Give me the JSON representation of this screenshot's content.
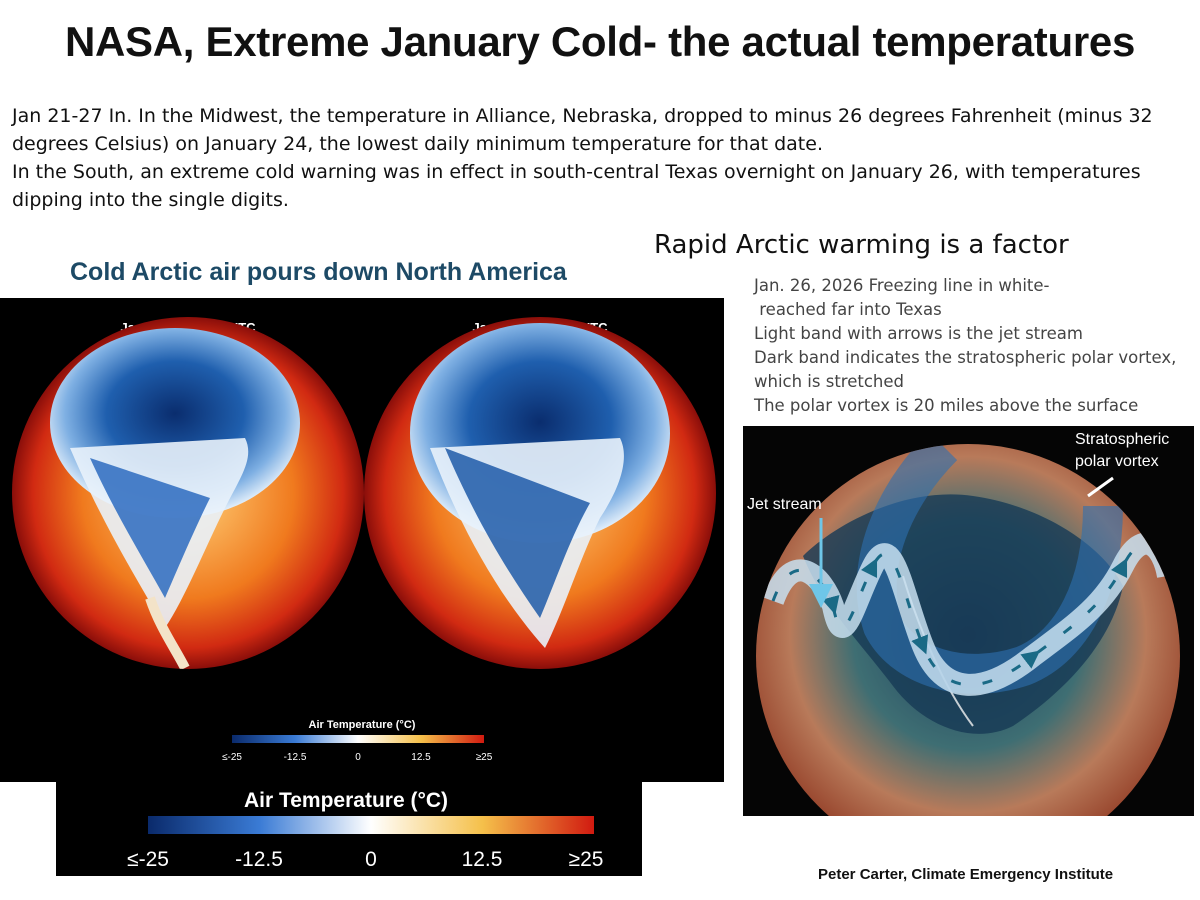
{
  "title": "NASA, Extreme January Cold- the actual temperatures",
  "intro": [
    "Jan 21-27 In. In the Midwest, the temperature in Alliance, Nebraska, dropped to minus 26 degrees Fahrenheit (minus 32 degrees Celsius) on January 24, the lowest daily minimum temperature for that date.",
    "In the South, an extreme cold warning was in effect in south-central Texas overnight on January 26, with temperatures dipping into the single digits."
  ],
  "left_heading": "Cold Arctic air pours down North America",
  "right_heading": "Rapid Arctic warming is a factor",
  "notes": [
    "Jan. 26, 2026 Freezing line in white-",
    " reached far into Texas",
    "Light band with arrows is the jet stream",
    "Dark band indicates the stratospheric polar vortex,",
    "which is stretched",
    "The polar vortex is 20 miles above the surface"
  ],
  "globes": {
    "left_label": "January 21 09:00 UTC",
    "right_label": "January 27 09:00 UTC"
  },
  "legend": {
    "title": "Air Temperature (°C)",
    "ticks": [
      "≤-25",
      "-12.5",
      "0",
      "12.5",
      "≥25"
    ],
    "colors": [
      "#0a2a6b",
      "#3a7bd5",
      "#ffffff",
      "#f5c04a",
      "#d11a10"
    ]
  },
  "vortex_map": {
    "jet_stream_label": "Jet stream",
    "vortex_label_line1": "Stratospheric",
    "vortex_label_line2": "polar vortex"
  },
  "credit": "Peter Carter, Climate Emergency Institute"
}
